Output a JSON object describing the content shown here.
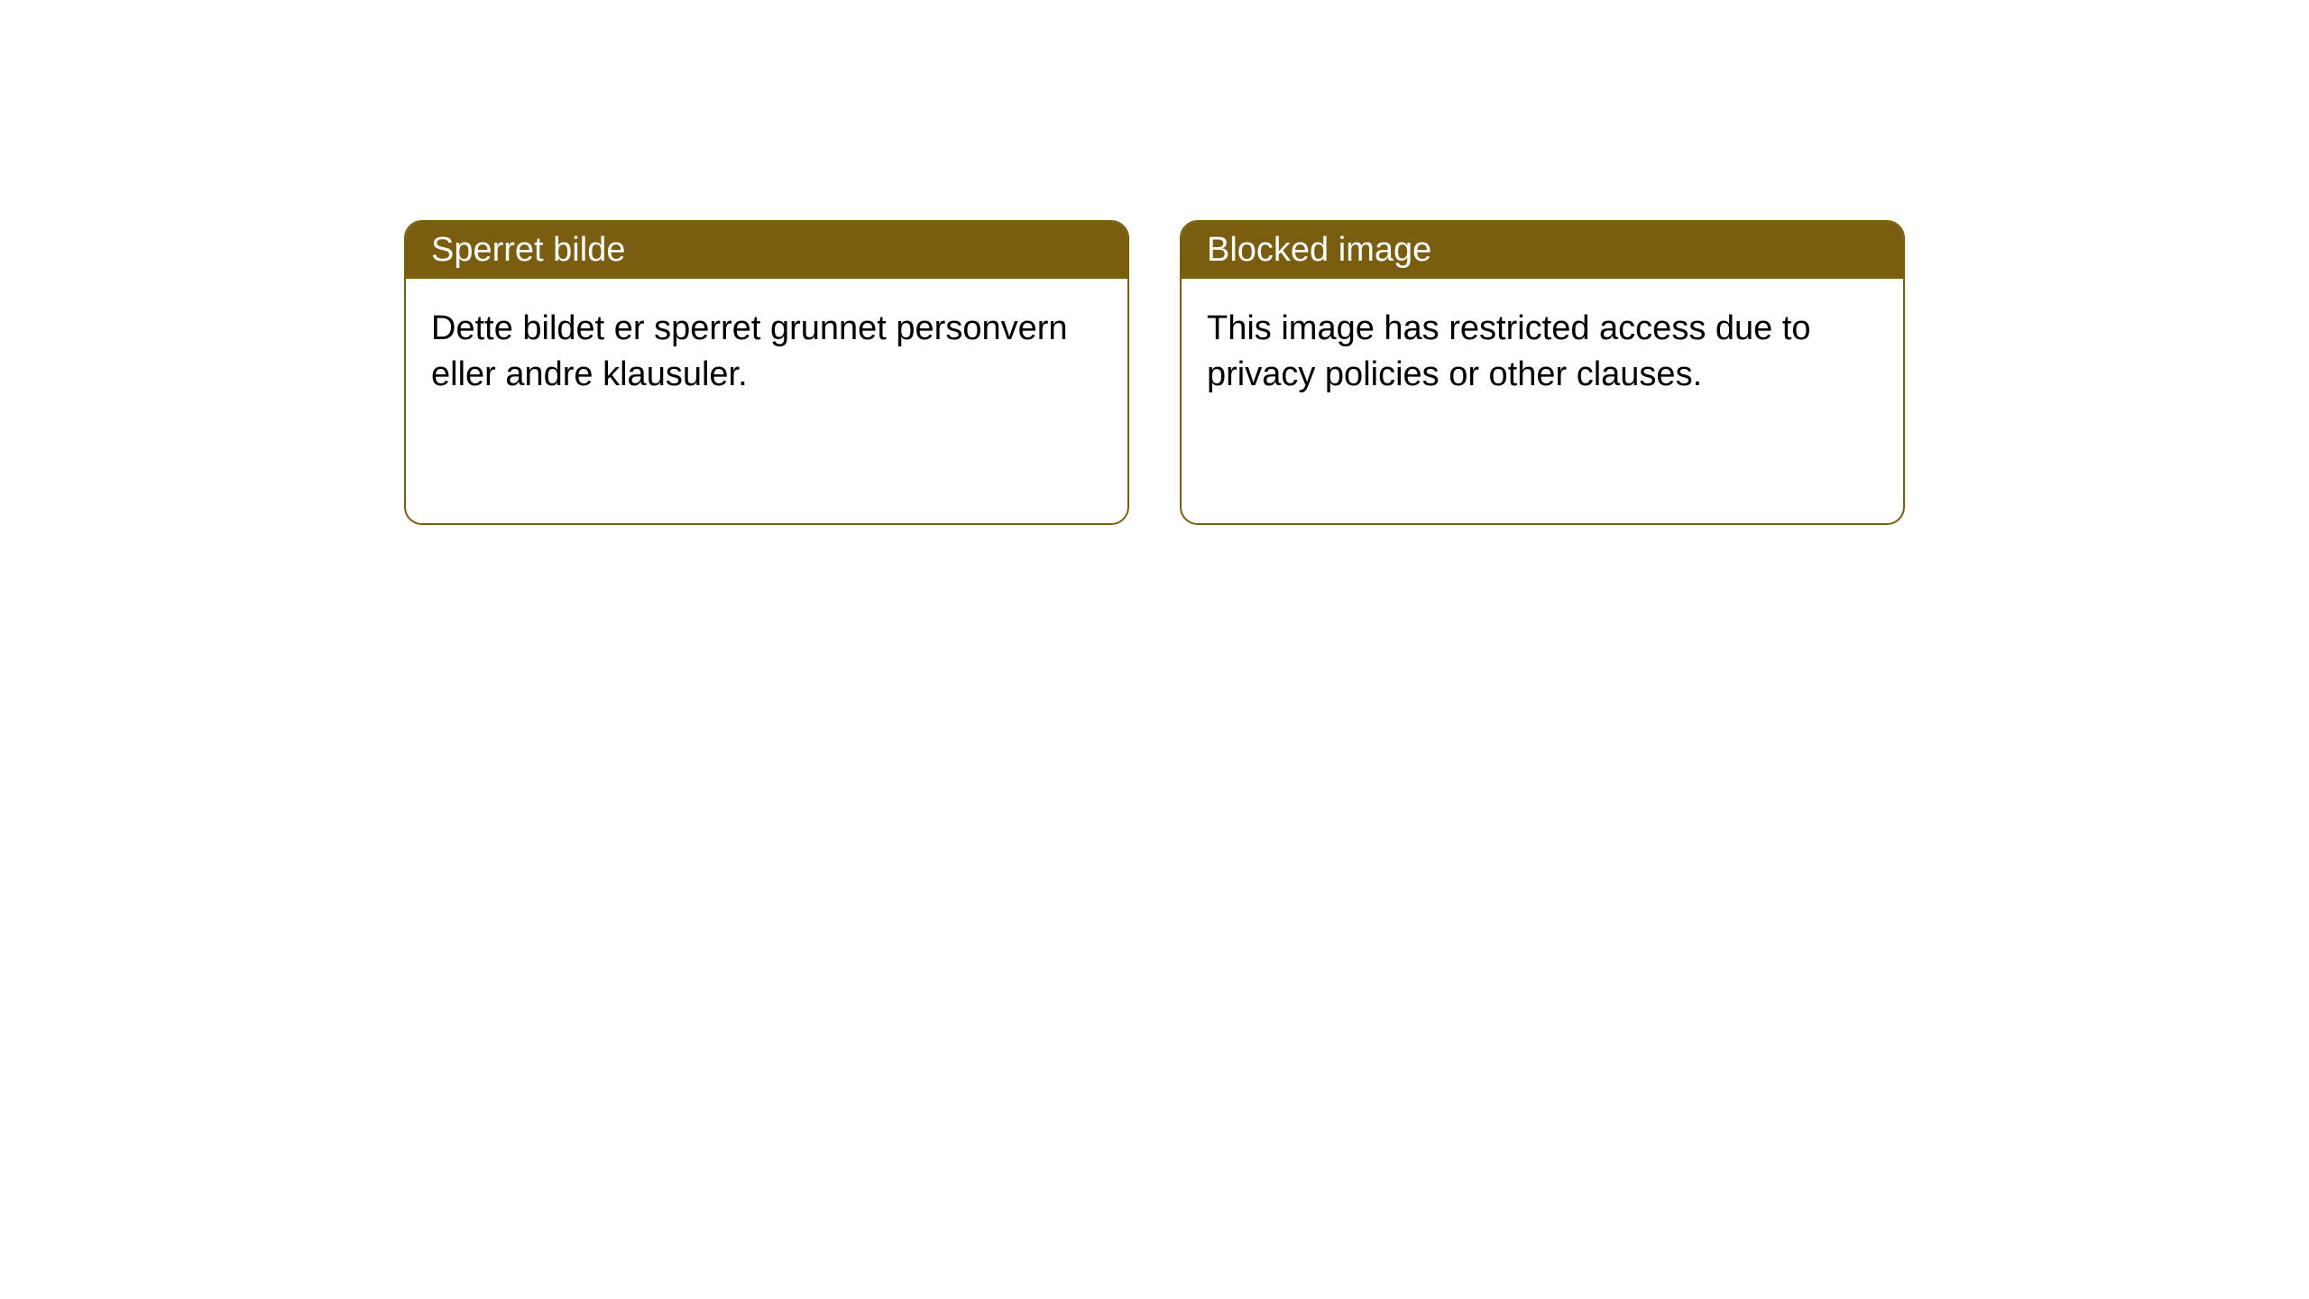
{
  "layout": {
    "containerTop": 244,
    "containerLeft": 448,
    "cardWidth": 804,
    "cardHeight": 338,
    "gap": 56,
    "borderRadius": 20,
    "borderWidth": 2
  },
  "colors": {
    "headerBackground": "#7a5d0f",
    "headerText": "#ffffff",
    "cardBorder": "#7a5d0f",
    "cardBackground": "#ffffff",
    "bodyText": "#000000",
    "pageBackground": "#ffffff"
  },
  "typography": {
    "fontFamily": "Arial, Helvetica, sans-serif",
    "headerFontSize": 38,
    "bodyFontSize": 38,
    "bodyLineHeight": 1.35
  },
  "cards": [
    {
      "title": "Sperret bilde",
      "body": "Dette bildet er sperret grunnet personvern eller andre klausuler."
    },
    {
      "title": "Blocked image",
      "body": "This image has restricted access due to privacy policies or other clauses."
    }
  ]
}
